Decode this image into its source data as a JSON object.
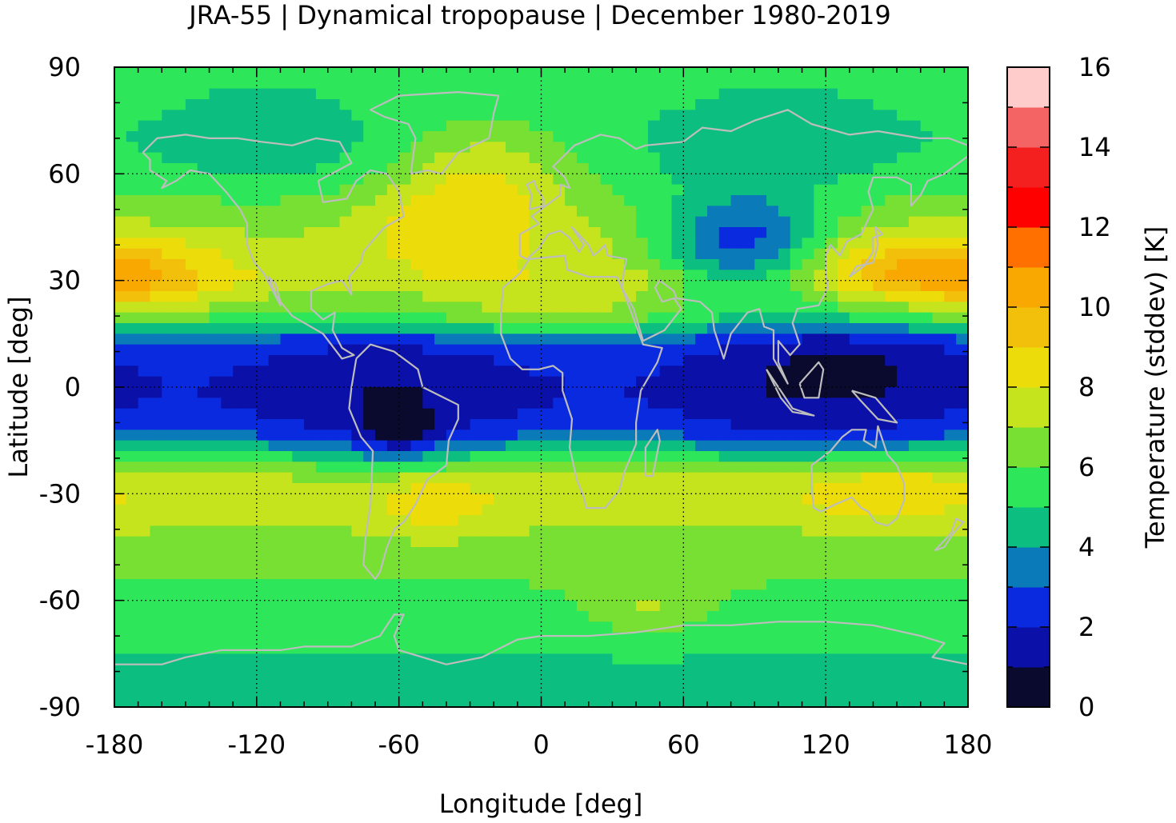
{
  "chart_data": {
    "type": "heatmap",
    "title": "JRA-55 | Dynamical tropopause | December 1980-2019",
    "xlabel": "Longitude [deg]",
    "ylabel": "Latitude [deg]",
    "colorbar_label": "Temperature (stddev) [K]",
    "xlim": [
      -180,
      180
    ],
    "ylim": [
      -90,
      90
    ],
    "x_ticks": [
      -180,
      -120,
      -60,
      0,
      60,
      120,
      180
    ],
    "y_ticks": [
      90,
      60,
      30,
      0,
      -30,
      -60,
      -90
    ],
    "x_tick_labels": [
      "-180",
      "-120",
      "-60",
      "0",
      "60",
      "120",
      "180"
    ],
    "y_tick_labels": [
      "90",
      "60",
      "30",
      "0",
      "-30",
      "-60",
      "-90"
    ],
    "grid": true,
    "colorbar": {
      "range": [
        0,
        16
      ],
      "ticks": [
        0,
        2,
        4,
        6,
        8,
        10,
        12,
        14,
        16
      ],
      "tick_labels": [
        "0",
        "2",
        "4",
        "6",
        "8",
        "10",
        "12",
        "14",
        "16"
      ],
      "colors": [
        "#0a0a2e",
        "#0a10a8",
        "#0a2ae0",
        "#0a7ab8",
        "#0cbe80",
        "#2ee65a",
        "#78e032",
        "#c6e41e",
        "#ecdc0a",
        "#f2c00a",
        "#f8a800",
        "#ff7000",
        "#ff0000",
        "#f42020",
        "#f46464",
        "#ffcccc"
      ]
    },
    "lat_profile": {
      "lat": [
        90,
        80,
        70,
        60,
        50,
        40,
        30,
        20,
        12,
        6,
        0,
        -6,
        -12,
        -18,
        -25,
        -32,
        -40,
        -50,
        -60,
        -70,
        -80,
        -90
      ],
      "value": [
        5.3,
        5.5,
        5.4,
        5.6,
        6.4,
        7.2,
        7.7,
        5.6,
        2.4,
        1.8,
        1.5,
        1.7,
        2.3,
        4.5,
        7.0,
        7.3,
        6.9,
        6.4,
        5.6,
        5.2,
        4.8,
        4.6
      ]
    },
    "anomalies": [
      {
        "lon": -170,
        "lat": 30,
        "dlon": 25,
        "dlat": 8,
        "amp": 2.0
      },
      {
        "lon": -30,
        "lat": 55,
        "dlon": 30,
        "dlat": 12,
        "amp": 1.6
      },
      {
        "lon": -20,
        "lat": 62,
        "dlon": 20,
        "dlat": 8,
        "amp": 1.0
      },
      {
        "lon": -40,
        "lat": 45,
        "dlon": 25,
        "dlat": 8,
        "amp": 1.0
      },
      {
        "lon": -115,
        "lat": 70,
        "dlon": 35,
        "dlat": 10,
        "amp": -1.2
      },
      {
        "lon": 100,
        "lat": 70,
        "dlon": 40,
        "dlat": 10,
        "amp": -1.2
      },
      {
        "lon": 85,
        "lat": 40,
        "dlon": 25,
        "dlat": 10,
        "amp": -4.5
      },
      {
        "lon": 150,
        "lat": 33,
        "dlon": 30,
        "dlat": 7,
        "amp": 2.2
      },
      {
        "lon": 145,
        "lat": -30,
        "dlon": 30,
        "dlat": 6,
        "amp": 1.6
      },
      {
        "lon": -45,
        "lat": -33,
        "dlon": 20,
        "dlat": 6,
        "amp": 1.6
      },
      {
        "lon": 45,
        "lat": -62,
        "dlon": 20,
        "dlat": 6,
        "amp": 1.5
      },
      {
        "lon": 0,
        "lat": 20,
        "dlon": 40,
        "dlat": 5,
        "amp": 1.2
      },
      {
        "lon": -60,
        "lat": -15,
        "dlon": 12,
        "dlat": 6,
        "amp": -2.0
      },
      {
        "lon": 135,
        "lat": 10,
        "dlon": 35,
        "dlat": 8,
        "amp": -0.8
      }
    ]
  }
}
